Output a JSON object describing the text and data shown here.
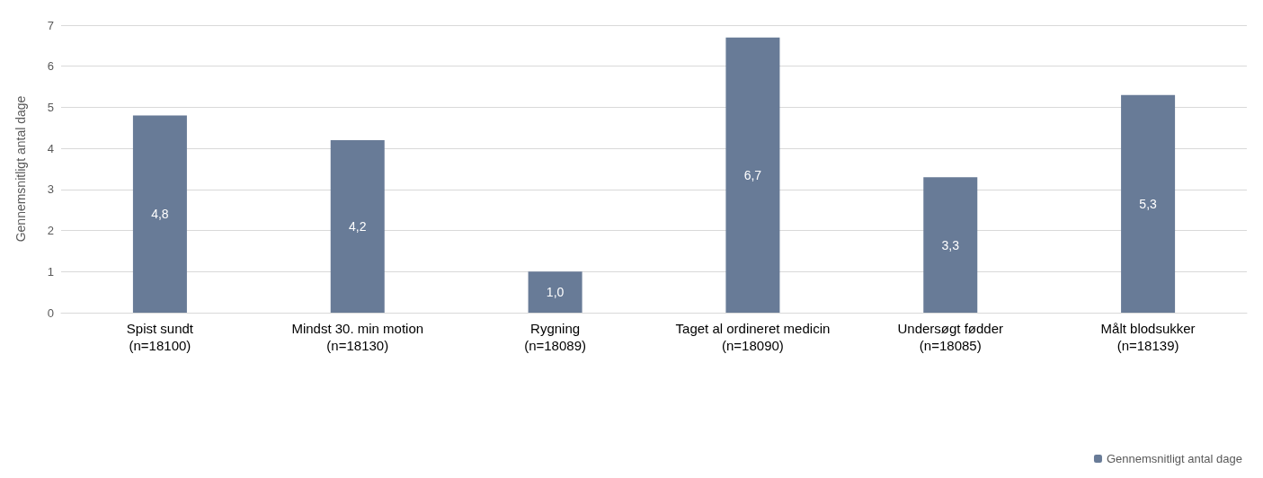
{
  "chart_data": {
    "type": "bar",
    "ylabel": "Gennemsnitligt antal dage",
    "categories": [
      "Spist sundt\n(n=18100)",
      "Mindst 30. min motion\n(n=18130)",
      "Rygning\n(n=18089)",
      "Taget al ordineret medicin\n(n=18090)",
      "Undersøgt fødder\n(n=18085)",
      "Målt blodsukker\n(n=18139)"
    ],
    "series": [
      {
        "name": "Gennemsnitligt antal dage",
        "color": "#687b97",
        "values": [
          4.8,
          4.2,
          1.0,
          6.7,
          3.3,
          5.3
        ],
        "value_labels": [
          "4,8",
          "4,2",
          "1,0",
          "6,7",
          "3,3",
          "5,3"
        ]
      }
    ],
    "ylim": [
      0,
      7
    ],
    "yticks": [
      0,
      1,
      2,
      3,
      4,
      5,
      6,
      7
    ],
    "grid": "y",
    "legend": "bottom right"
  }
}
